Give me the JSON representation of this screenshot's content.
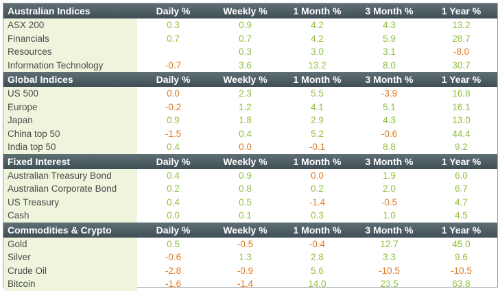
{
  "columns": [
    "Daily %",
    "Weekly %",
    "1 Month %",
    "3 Month %",
    "1 Year %"
  ],
  "colors": {
    "positive": "#8fbf3f",
    "negative": "#e0781f",
    "header_bg": "#4f5f65",
    "label_bg": "#eef5dc"
  },
  "sections": [
    {
      "title": "Australian Indices",
      "rows": [
        {
          "name": "ASX 200",
          "values": [
            "0.3",
            "0.9",
            "4.2",
            "4.3",
            "13.2"
          ]
        },
        {
          "name": "Financials",
          "values": [
            "0.7",
            "0.7",
            "4.2",
            "5.9",
            "28.7"
          ]
        },
        {
          "name": "Resources",
          "values": [
            "",
            "0.3",
            "3.0",
            "3.1",
            "-8.0"
          ]
        },
        {
          "name": "Information Technology",
          "values": [
            "-0.7",
            "3.6",
            "13.2",
            "8.0",
            "30.7"
          ]
        }
      ]
    },
    {
      "title": "Global Indices",
      "rows": [
        {
          "name": "US 500",
          "values": [
            "0.0",
            "2.3",
            "5.5",
            "-3.9",
            "16.8"
          ]
        },
        {
          "name": "Europe",
          "values": [
            "-0.2",
            "1.2",
            "4.1",
            "5.1",
            "16.1"
          ]
        },
        {
          "name": "Japan",
          "values": [
            "0.9",
            "1.8",
            "2.9",
            "4.3",
            "13.0"
          ]
        },
        {
          "name": "China top 50",
          "values": [
            "-1.5",
            "0.4",
            "5.2",
            "-0.6",
            "44.4"
          ]
        },
        {
          "name": "India top 50",
          "values": [
            "0.4",
            "0.0",
            "-0.1",
            "8.8",
            "9.2"
          ]
        }
      ]
    },
    {
      "title": "Fixed Interest",
      "rows": [
        {
          "name": "Australian Treasury Bond",
          "values": [
            "0.4",
            "0.9",
            "0.0",
            "1.9",
            "6.0"
          ]
        },
        {
          "name": "Australian Corporate Bond",
          "values": [
            "0.2",
            "0.8",
            "0.2",
            "2.0",
            "6.7"
          ]
        },
        {
          "name": "US Treasury",
          "values": [
            "0.4",
            "0.5",
            "-1.4",
            "-0.5",
            "4.7"
          ]
        },
        {
          "name": "Cash",
          "values": [
            "0.0",
            "0.1",
            "0.3",
            "1.0",
            "4.5"
          ]
        }
      ]
    },
    {
      "title": "Commodities & Crypto",
      "rows": [
        {
          "name": "Gold",
          "values": [
            "0.5",
            "-0.5",
            "-0.4",
            "12.7",
            "45.0"
          ]
        },
        {
          "name": "Silver",
          "values": [
            "-0.6",
            "1.3",
            "2.8",
            "3.3",
            "9.6"
          ]
        },
        {
          "name": "Crude Oil",
          "values": [
            "-2.8",
            "-0.9",
            "5.6",
            "-10.5",
            "-10.5"
          ]
        },
        {
          "name": "Bitcoin",
          "values": [
            "-1.6",
            "-1.4",
            "14.0",
            "23.5",
            "63.8"
          ]
        }
      ]
    }
  ]
}
